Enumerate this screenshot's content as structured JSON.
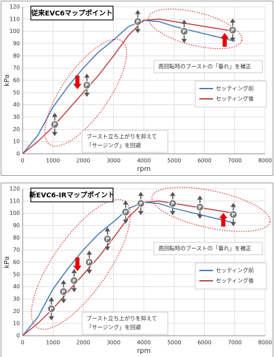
{
  "chart_data": [
    {
      "type": "line",
      "title": "従来EVC6マップポイント",
      "xlabel": "rpm",
      "ylabel": "kPa",
      "x": [
        0,
        500,
        1000,
        1500,
        2000,
        2500,
        3000,
        3500,
        4000,
        4500,
        5000,
        5500,
        6000,
        6500,
        7000
      ],
      "series": [
        {
          "name": "セッティング前",
          "color": "#4a7ebb",
          "values": [
            0,
            15,
            38,
            55,
            70,
            83,
            93,
            104,
            109,
            108,
            104,
            101,
            98,
            95,
            92
          ]
        },
        {
          "name": "セッティング後",
          "color": "#be4b48",
          "values": [
            0,
            10,
            22,
            36,
            50,
            64,
            80,
            97,
            109,
            110,
            108,
            106,
            104,
            102,
            100
          ]
        }
      ],
      "xlim": [
        0,
        8000
      ],
      "ylim": [
        0,
        120
      ],
      "xticks": [
        0,
        1000,
        2000,
        3000,
        4000,
        5000,
        6000,
        7000,
        8000
      ],
      "yticks": [
        0,
        10,
        20,
        30,
        40,
        50,
        60,
        70,
        80,
        90,
        100,
        110,
        120
      ],
      "grid": true,
      "annotations": [
        [
          "高回転時のブーストの「垂れ」を補正"
        ],
        [
          "ブースト立ち上がりを抑えて",
          "「サージング」を回避"
        ]
      ],
      "map_points": {
        "label": "P",
        "x": [
          1060,
          2120,
          3800,
          5330,
          6930
        ],
        "y": [
          24,
          56,
          108,
          100,
          101
        ]
      }
    },
    {
      "type": "line",
      "title": "新EVC6-IRマップポイント",
      "xlabel": "rpm",
      "ylabel": "kPa",
      "x": [
        0,
        500,
        1000,
        1500,
        2000,
        2500,
        3000,
        3500,
        4000,
        4500,
        5000,
        5500,
        6000,
        6500,
        7000
      ],
      "series": [
        {
          "name": "セッティング前",
          "color": "#4a7ebb",
          "values": [
            0,
            15,
            38,
            55,
            70,
            83,
            93,
            104,
            109,
            108,
            104,
            101,
            98,
            95,
            92
          ]
        },
        {
          "name": "セッティング後",
          "color": "#be4b48",
          "values": [
            0,
            10,
            22,
            36,
            50,
            64,
            80,
            97,
            109,
            110,
            108,
            106,
            104,
            102,
            100
          ]
        }
      ],
      "xlim": [
        0,
        8000
      ],
      "ylim": [
        0,
        120
      ],
      "xticks": [
        0,
        1000,
        2000,
        3000,
        4000,
        5000,
        6000,
        7000,
        8000
      ],
      "yticks": [
        0,
        10,
        20,
        30,
        40,
        50,
        60,
        70,
        80,
        90,
        100,
        110,
        120
      ],
      "grid": true,
      "annotations": [
        [
          "高回転時のブーストの「垂れ」を補正"
        ],
        [
          "ブースト立ち上がりを抑えて",
          "「サージング」を回避"
        ]
      ],
      "map_points": {
        "label": "P",
        "x": [
          950,
          1350,
          1700,
          2200,
          2800,
          3400,
          3900,
          4950,
          5850,
          6950
        ],
        "y": [
          22,
          36,
          45,
          60,
          79,
          101,
          108,
          108,
          105,
          99
        ]
      }
    }
  ]
}
